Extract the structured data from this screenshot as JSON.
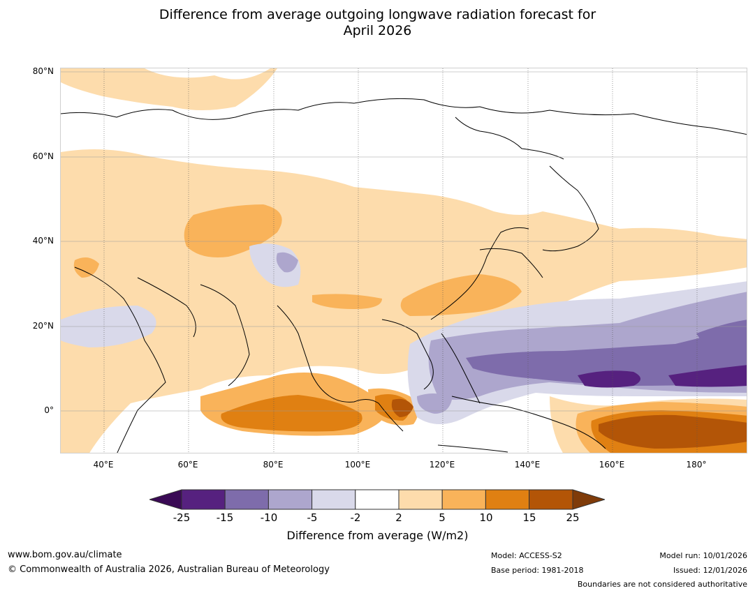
{
  "title_line1": "Difference from average outgoing longwave radiation forecast for",
  "title_line2": "April 2026",
  "lat_labels": [
    "80°N",
    "60°N",
    "40°N",
    "20°N",
    "0°"
  ],
  "lon_labels": [
    "40°E",
    "60°E",
    "80°E",
    "100°E",
    "120°E",
    "140°E",
    "160°E",
    "180°"
  ],
  "colorbar": {
    "ticks": [
      "-25",
      "-15",
      "-10",
      "-5",
      "-2",
      "2",
      "5",
      "10",
      "15",
      "25"
    ],
    "colors": [
      "#3a0a55",
      "#56217f",
      "#7e6cab",
      "#ada6cd",
      "#d9d9ea",
      "#ffffff",
      "#fddcac",
      "#f9b35a",
      "#e08012",
      "#b35507",
      "#7f3b09"
    ],
    "label": "Difference from average (W/m2)"
  },
  "footer": {
    "website": "www.bom.gov.au/climate",
    "copyright": "© Commonwealth of Australia 2026, Australian Bureau of Meteorology",
    "model": "Model: ACCESS-S2",
    "base_period": "Base period: 1981-2018",
    "model_run": "Model run: 10/01/2026",
    "issued": "Issued: 12/01/2026",
    "boundaries": "Boundaries are not considered authoritative"
  }
}
